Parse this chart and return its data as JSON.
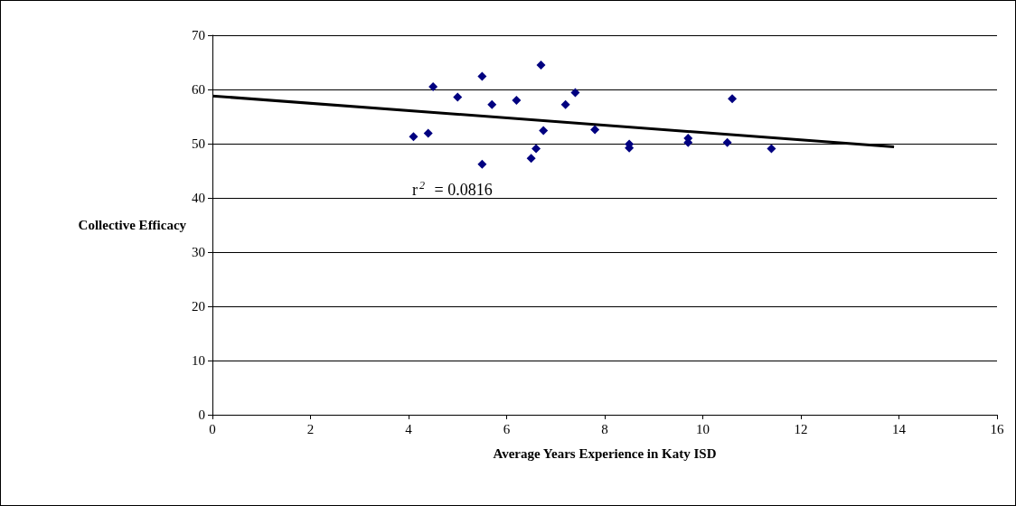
{
  "chart_data": {
    "type": "scatter",
    "xlabel": "Average Years Experience in Katy ISD",
    "ylabel": "Collective Efficacy",
    "xlim": [
      0,
      16
    ],
    "xticks": [
      0,
      2,
      4,
      6,
      8,
      10,
      12,
      14,
      16
    ],
    "ylim": [
      0,
      70
    ],
    "yticks": [
      0,
      10,
      20,
      30,
      40,
      50,
      60,
      70
    ],
    "grid": "y",
    "annotations": [
      "r$^{2}$ = 0.0816"
    ],
    "series": [
      {
        "marker": "diamond",
        "color": "#000080",
        "x": [
          4.1,
          4.4,
          4.5,
          5.0,
          5.5,
          5.5,
          5.7,
          6.2,
          6.5,
          6.6,
          6.7,
          6.75,
          7.2,
          7.4,
          7.8,
          8.5,
          8.5,
          9.7,
          9.7,
          10.5,
          10.6,
          11.4
        ],
        "values": [
          51.3,
          51.9,
          60.5,
          58.6,
          62.4,
          46.2,
          57.2,
          58.0,
          47.3,
          49.1,
          64.5,
          52.4,
          57.2,
          59.4,
          52.6,
          49.9,
          49.2,
          51.0,
          50.2,
          50.2,
          58.3,
          49.1
        ]
      },
      {
        "type": "line",
        "marker": "none",
        "color": "#000000",
        "x": [
          0,
          13.9
        ],
        "values": [
          58.8,
          49.4
        ]
      }
    ]
  }
}
